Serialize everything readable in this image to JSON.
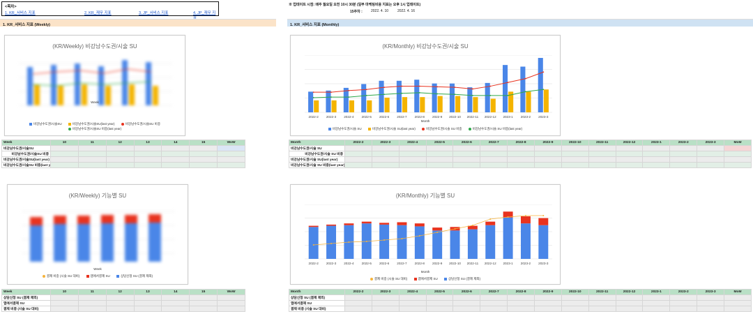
{
  "toc": {
    "title": "<목차>",
    "links": [
      "1. KR_서비스 지표",
      "2. KR_재무 지표",
      "3. JP_서비스 지표",
      "4. JP_재무 지표"
    ]
  },
  "update_note": {
    "text": "※ 업데이트 시점: 매주 월요일 오전 10시 30분 (일부 마케팅비용 지표는 오후 1시 업데이트)",
    "week_label": "15주차 :",
    "date_from": "2022. 4. 10",
    "date_to": "2022. 4. 16"
  },
  "sections": {
    "weekly": "1. KR_서비스 지표 (Weekly)",
    "monthly": "1. KR_서비스 지표 (Monthly)"
  },
  "charts": {
    "weekly_su": {
      "title": "(KR/Weekly) 비강남수도권/시술 SU",
      "xlabel": "Week",
      "legend": [
        "비강남수도권/시술SU",
        "비강남수도권/시술SU(last year)",
        "비강남수도권/시술SU 비중",
        "비강남수도권/시술SU 비중(last year)"
      ]
    },
    "monthly_su": {
      "title": "(KR/Monthly) 비강남수도권/시술 SU",
      "xlabel": "Month",
      "legend": [
        "비강남수도권/시술 SU",
        "비강남수도권/시술 SU(last year)",
        "비강남수도권/시술 SU 비중",
        "비강남수도권/시술 SU 비중(last year)"
      ]
    },
    "weekly_func": {
      "title": "(KR/Weekly) 기능별 SU",
      "xlabel": "Week",
      "legend": [
        "결제 비중 (시술 SU 대비)",
        "앱에서결제 SU",
        "상담신청 SU (결제 제외)"
      ]
    },
    "monthly_func": {
      "title": "(KR/Monthly) 기능별 SU",
      "xlabel": "Month",
      "legend": [
        "결제 비중 (시술 SU 대비)",
        "앱에서결제 SU",
        "상담신청 SU (결제 제외)"
      ]
    }
  },
  "colors": {
    "blue": "#4a86e8",
    "yellow": "#f4b400",
    "red": "#e8331f",
    "green": "#2ea84a",
    "orange": "#f6b33b",
    "header_green": "#b9e0c6",
    "section_orange": "#fbe3c8",
    "section_blue": "#cfe2f3"
  },
  "chart_data": [
    {
      "type": "bar",
      "title": "(KR/Monthly) 비강남수도권/시술 SU",
      "xlabel": "Month",
      "categories": [
        "2022-2",
        "2022-3",
        "2022-4",
        "2022-5",
        "2022-6",
        "2022-7",
        "2022-8",
        "2022-9",
        "2022-10",
        "2022-11",
        "2022-12",
        "2023-1",
        "2023-2",
        "2023-3"
      ],
      "series": [
        {
          "name": "비강남수도권/시술 SU",
          "values": [
            38,
            40,
            45,
            52,
            58,
            58,
            60,
            53,
            53,
            46,
            54,
            87,
            84,
            100
          ]
        },
        {
          "name": "비강남수도권/시술 SU(last year)",
          "values": [
            22,
            22,
            22,
            22,
            27,
            28,
            28,
            30,
            30,
            28,
            25,
            38,
            38,
            42
          ]
        },
        {
          "name": "비강남수도권/시술 SU 비중",
          "values": [
            37,
            37,
            40,
            42,
            46,
            48,
            48,
            47,
            46,
            43,
            48,
            55,
            62,
            74
          ]
        },
        {
          "name": "비강남수도권/시술 SU 비중(last year)",
          "values": [
            27,
            28,
            28,
            31,
            33,
            35,
            36,
            34,
            33,
            31,
            31,
            31,
            38,
            42
          ]
        }
      ]
    },
    {
      "type": "bar",
      "title": "(KR/Monthly) 기능별 SU",
      "xlabel": "Month",
      "categories": [
        "2022-2",
        "2022-3",
        "2022-4",
        "2022-5",
        "2022-6",
        "2022-7",
        "2022-8",
        "2022-9",
        "2022-10",
        "2022-11",
        "2022-12",
        "2023-1",
        "2023-2",
        "2023-3"
      ],
      "series": [
        {
          "name": "상담신청 SU (결제 제외)",
          "values": [
            54,
            56,
            57,
            60,
            58,
            57,
            55,
            48,
            48,
            50,
            57,
            70,
            60,
            57
          ]
        },
        {
          "name": "앱에서결제 SU",
          "values": [
            2,
            2,
            3,
            3,
            3,
            5,
            5,
            5,
            6,
            6,
            6,
            10,
            12,
            12
          ]
        },
        {
          "name": "결제 비중 (시술 SU 대비)",
          "values": [
            20,
            22,
            24,
            25,
            27,
            29,
            33,
            38,
            43,
            48,
            57,
            60,
            62,
            62
          ]
        }
      ]
    }
  ],
  "tables": {
    "weekly_su": {
      "header": [
        "Week",
        "10",
        "11",
        "12",
        "13",
        "14",
        "15",
        "WoW"
      ],
      "rows": [
        "비강남수도권/시술SU",
        "비강남수도권/시술SU 비중",
        "비강남수도권/시술SU(last year)",
        "비강남수도권/시술SU 비중(last year)"
      ]
    },
    "monthly_su": {
      "header": [
        "Month",
        "2022-2",
        "2022-3",
        "2022-4",
        "2022-5",
        "2022-6",
        "2022-7",
        "2022-8",
        "2022-9",
        "2022-10",
        "2022-11",
        "2022-12",
        "2023-1",
        "2023-2",
        "2023-3",
        "MoM"
      ],
      "rows": [
        "비강남수도권/시술 SU",
        "비강남수도권/시술 SU 비중",
        "비강남수도권/시술 SU(last year)",
        "비강남수도권/시술 SU 비중(last year)"
      ]
    },
    "weekly_func": {
      "header": [
        "Week",
        "10",
        "11",
        "12",
        "13",
        "14",
        "15",
        "WoW"
      ],
      "rows": [
        "상담신청 SU (결제 제외)",
        "앱에서결제 SU",
        "결제 비중 (시술 SU 대비)"
      ]
    },
    "monthly_func": {
      "header": [
        "Month",
        "2022-2",
        "2022-3",
        "2022-4",
        "2022-5",
        "2022-6",
        "2022-7",
        "2022-8",
        "2022-9",
        "2022-10",
        "2022-11",
        "2022-12",
        "2023-1",
        "2023-2",
        "2023-3",
        "MoM"
      ],
      "rows": [
        "상담신청 SU (결제 제외)",
        "앱에서결제 SU",
        "결제 비중 (시술 SU 대비)"
      ]
    }
  }
}
